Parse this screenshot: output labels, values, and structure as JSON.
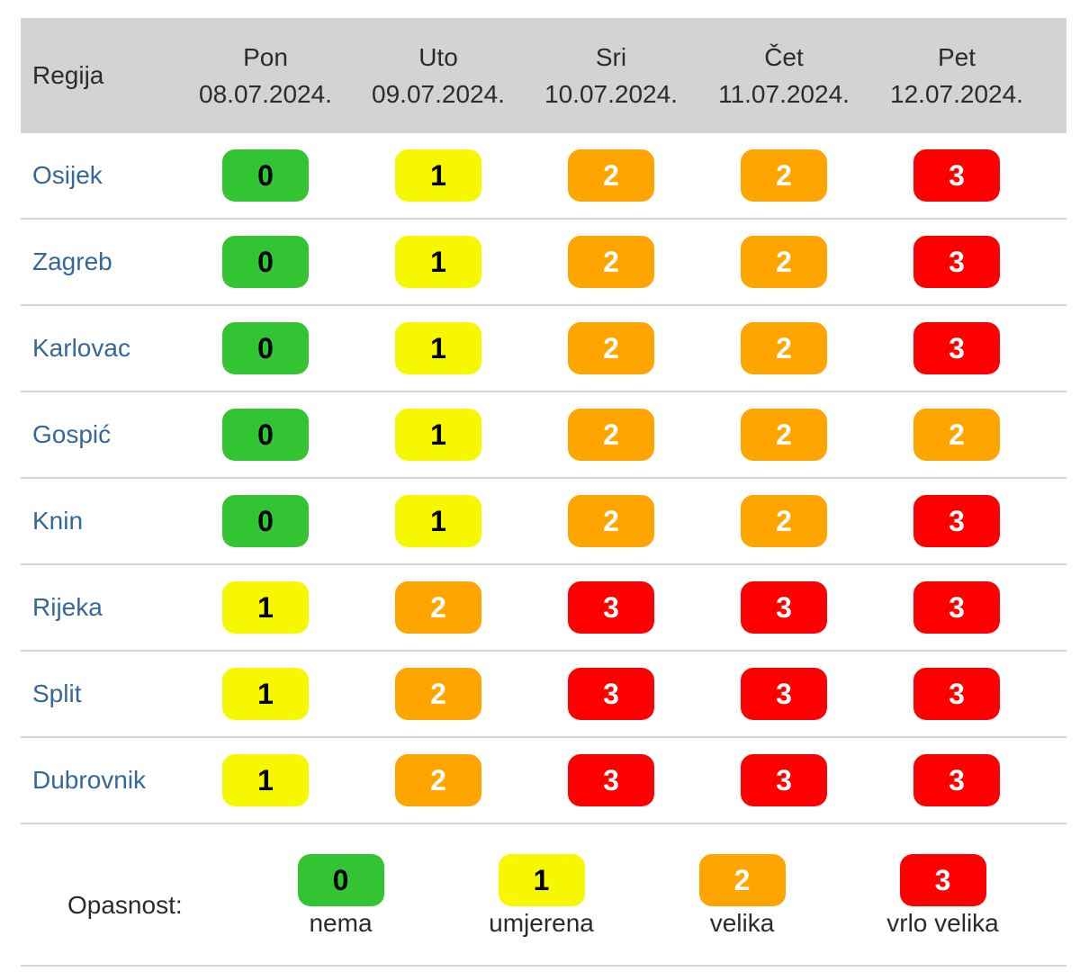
{
  "chart_data": {
    "type": "heatmap",
    "title": "",
    "region_label": "Regija",
    "columns": [
      {
        "day": "Pon",
        "date": "08.07.2024."
      },
      {
        "day": "Uto",
        "date": "09.07.2024."
      },
      {
        "day": "Sri",
        "date": "10.07.2024."
      },
      {
        "day": "Čet",
        "date": "11.07.2024."
      },
      {
        "day": "Pet",
        "date": "12.07.2024."
      }
    ],
    "rows": [
      {
        "region": "Osijek",
        "values": [
          0,
          1,
          2,
          2,
          3
        ]
      },
      {
        "region": "Zagreb",
        "values": [
          0,
          1,
          2,
          2,
          3
        ]
      },
      {
        "region": "Karlovac",
        "values": [
          0,
          1,
          2,
          2,
          3
        ]
      },
      {
        "region": "Gospić",
        "values": [
          0,
          1,
          2,
          2,
          2
        ]
      },
      {
        "region": "Knin",
        "values": [
          0,
          1,
          2,
          2,
          3
        ]
      },
      {
        "region": "Rijeka",
        "values": [
          1,
          2,
          3,
          3,
          3
        ]
      },
      {
        "region": "Split",
        "values": [
          1,
          2,
          3,
          3,
          3
        ]
      },
      {
        "region": "Dubrovnik",
        "values": [
          1,
          2,
          3,
          3,
          3
        ]
      }
    ],
    "value_range": [
      0,
      3
    ]
  },
  "legend": {
    "label": "Opasnost:",
    "items": [
      {
        "value": 0,
        "name": "nema",
        "color": "#33c433",
        "text_color": "#000000"
      },
      {
        "value": 1,
        "name": "umjerena",
        "color": "#f7f700",
        "text_color": "#000000"
      },
      {
        "value": 2,
        "name": "velika",
        "color": "#ffa500",
        "text_color": "#ffffff"
      },
      {
        "value": 3,
        "name": "vrlo velika",
        "color": "#ff0000",
        "text_color": "#ffffff"
      }
    ]
  },
  "colors": {
    "header_bg": "#d3d3d3",
    "row_divider": "#d2d7db",
    "region_text": "#35689a"
  }
}
